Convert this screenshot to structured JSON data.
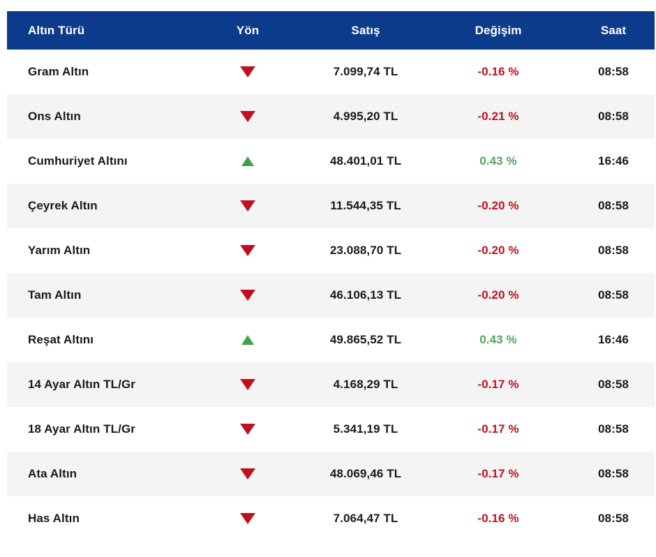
{
  "table": {
    "columns": [
      {
        "key": "name",
        "label": "Altın Türü"
      },
      {
        "key": "dir",
        "label": "Yön"
      },
      {
        "key": "price",
        "label": "Satış"
      },
      {
        "key": "change",
        "label": "Değişim"
      },
      {
        "key": "time",
        "label": "Saat"
      }
    ],
    "rows": [
      {
        "name": "Gram Altın",
        "direction": "down",
        "price": "7.099,74 TL",
        "change": "-0.16 %",
        "time": "08:58"
      },
      {
        "name": "Ons Altın",
        "direction": "down",
        "price": "4.995,20 TL",
        "change": "-0.21 %",
        "time": "08:58"
      },
      {
        "name": "Cumhuriyet Altını",
        "direction": "up",
        "price": "48.401,01 TL",
        "change": "0.43 %",
        "time": "16:46"
      },
      {
        "name": "Çeyrek Altın",
        "direction": "down",
        "price": "11.544,35 TL",
        "change": "-0.20 %",
        "time": "08:58"
      },
      {
        "name": "Yarım Altın",
        "direction": "down",
        "price": "23.088,70 TL",
        "change": "-0.20 %",
        "time": "08:58"
      },
      {
        "name": "Tam Altın",
        "direction": "down",
        "price": "46.106,13 TL",
        "change": "-0.20 %",
        "time": "08:58"
      },
      {
        "name": "Reşat Altını",
        "direction": "up",
        "price": "49.865,52 TL",
        "change": "0.43 %",
        "time": "16:46"
      },
      {
        "name": "14 Ayar Altın TL/Gr",
        "direction": "down",
        "price": "4.168,29 TL",
        "change": "-0.17 %",
        "time": "08:58"
      },
      {
        "name": "18 Ayar Altın TL/Gr",
        "direction": "down",
        "price": "5.341,19 TL",
        "change": "-0.17 %",
        "time": "08:58"
      },
      {
        "name": "Ata Altın",
        "direction": "down",
        "price": "48.069,46 TL",
        "change": "-0.17 %",
        "time": "08:58"
      },
      {
        "name": "Has Altın",
        "direction": "down",
        "price": "7.064,47 TL",
        "change": "-0.16 %",
        "time": "08:58"
      }
    ]
  },
  "colors": {
    "header_bg": "#0d3b8c",
    "down_red": "#c01020",
    "up_triangle_green": "#43a14b",
    "up_text_green": "#53a35c",
    "alt_row_bg": "#f4f4f4",
    "text_dark": "#17181c"
  }
}
